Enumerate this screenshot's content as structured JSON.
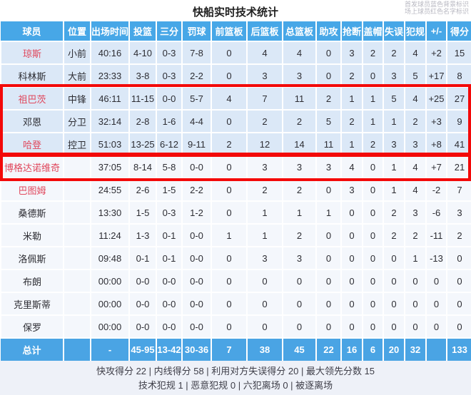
{
  "title": "快船实时技术统计",
  "legend": {
    "starters": "首发球员蓝色背景标识",
    "on_court": "场上球员红色名字标识"
  },
  "columns": [
    "球员",
    "位置",
    "出场时间",
    "投篮",
    "三分",
    "罚球",
    "前篮板",
    "后篮板",
    "总篮板",
    "助攻",
    "抢断",
    "盖帽",
    "失误",
    "犯规",
    "+/-",
    "得分"
  ],
  "players": [
    {
      "name": "琼斯",
      "starter": true,
      "on_court": true,
      "cells": [
        "小前",
        "40:16",
        "4-10",
        "0-3",
        "7-8",
        "0",
        "4",
        "4",
        "0",
        "3",
        "2",
        "2",
        "4",
        "+2",
        "15"
      ]
    },
    {
      "name": "科林斯",
      "starter": true,
      "on_court": false,
      "cells": [
        "大前",
        "23:33",
        "3-8",
        "0-3",
        "2-2",
        "0",
        "3",
        "3",
        "0",
        "2",
        "0",
        "3",
        "5",
        "+17",
        "8"
      ]
    },
    {
      "name": "祖巴茨",
      "starter": true,
      "on_court": true,
      "cells": [
        "中锋",
        "46:11",
        "11-15",
        "0-0",
        "5-7",
        "4",
        "7",
        "11",
        "2",
        "1",
        "1",
        "5",
        "4",
        "+25",
        "27"
      ]
    },
    {
      "name": "邓恩",
      "starter": true,
      "on_court": false,
      "cells": [
        "分卫",
        "32:14",
        "2-8",
        "1-6",
        "4-4",
        "0",
        "2",
        "2",
        "5",
        "2",
        "1",
        "1",
        "2",
        "+3",
        "9"
      ]
    },
    {
      "name": "哈登",
      "starter": true,
      "on_court": true,
      "cells": [
        "控卫",
        "51:03",
        "13-25",
        "6-12",
        "9-11",
        "2",
        "12",
        "14",
        "11",
        "1",
        "2",
        "3",
        "3",
        "+8",
        "41"
      ]
    },
    {
      "name": "博格达诺维奇",
      "starter": false,
      "on_court": true,
      "cells": [
        "",
        "37:05",
        "8-14",
        "5-8",
        "0-0",
        "0",
        "3",
        "3",
        "3",
        "4",
        "0",
        "1",
        "4",
        "+7",
        "21"
      ]
    },
    {
      "name": "巴图姆",
      "starter": false,
      "on_court": true,
      "cells": [
        "",
        "24:55",
        "2-6",
        "1-5",
        "2-2",
        "0",
        "2",
        "2",
        "0",
        "3",
        "0",
        "1",
        "4",
        "-2",
        "7"
      ]
    },
    {
      "name": "桑德斯",
      "starter": false,
      "on_court": false,
      "cells": [
        "",
        "13:30",
        "1-5",
        "0-3",
        "1-2",
        "0",
        "1",
        "1",
        "1",
        "0",
        "0",
        "2",
        "3",
        "-6",
        "3"
      ]
    },
    {
      "name": "米勒",
      "starter": false,
      "on_court": false,
      "cells": [
        "",
        "11:24",
        "1-3",
        "0-1",
        "0-0",
        "1",
        "1",
        "2",
        "0",
        "0",
        "0",
        "2",
        "2",
        "-11",
        "2"
      ]
    },
    {
      "name": "洛佩斯",
      "starter": false,
      "on_court": false,
      "cells": [
        "",
        "09:48",
        "0-1",
        "0-1",
        "0-0",
        "0",
        "3",
        "3",
        "0",
        "0",
        "0",
        "0",
        "1",
        "-13",
        "0"
      ]
    },
    {
      "name": "布朗",
      "starter": false,
      "on_court": false,
      "cells": [
        "",
        "00:00",
        "0-0",
        "0-0",
        "0-0",
        "0",
        "0",
        "0",
        "0",
        "0",
        "0",
        "0",
        "0",
        "0",
        "0"
      ]
    },
    {
      "name": "克里斯蒂",
      "starter": false,
      "on_court": false,
      "cells": [
        "",
        "00:00",
        "0-0",
        "0-0",
        "0-0",
        "0",
        "0",
        "0",
        "0",
        "0",
        "0",
        "0",
        "0",
        "0",
        "0"
      ]
    },
    {
      "name": "保罗",
      "starter": false,
      "on_court": false,
      "cells": [
        "",
        "00:00",
        "0-0",
        "0-0",
        "0-0",
        "0",
        "0",
        "0",
        "0",
        "0",
        "0",
        "0",
        "0",
        "0",
        "0"
      ]
    }
  ],
  "totals": {
    "name": "总计",
    "cells": [
      "",
      "-",
      "45-95",
      "13-42",
      "30-36",
      "7",
      "38",
      "45",
      "22",
      "16",
      "6",
      "20",
      "32",
      "",
      "133"
    ]
  },
  "footer": {
    "line1": "快攻得分 22 | 内线得分 58 | 利用对方失误得分 20 | 最大领先分数 15",
    "line2": "技术犯规 1 | 恶意犯规 0 | 六犯离场 0 | 被逐离场"
  },
  "colors": {
    "header_blue": "#47a7e7",
    "total_blue": "#4aa4e4",
    "starter_row_blue": "#dbe8f7",
    "bench_row": "#f4f7fc",
    "on_court_red_name": "#e0475c",
    "annotation_box_red": "#f30909"
  }
}
